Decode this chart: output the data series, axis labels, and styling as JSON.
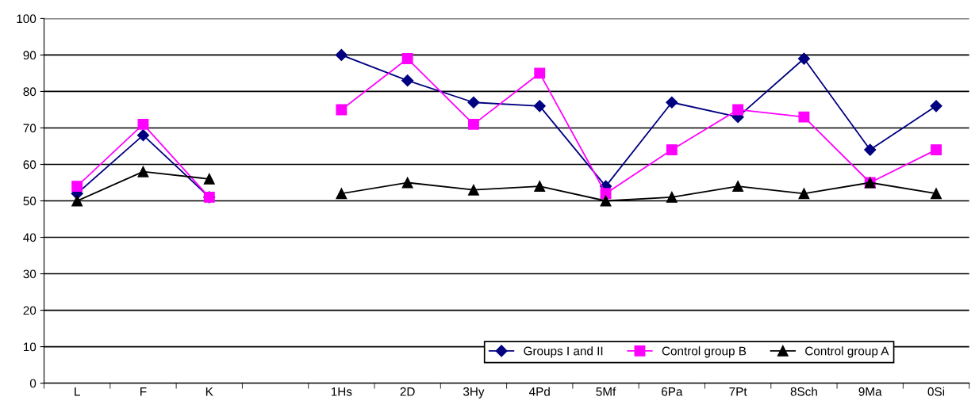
{
  "chart_data": {
    "type": "line",
    "categories": [
      "L",
      "F",
      "K",
      null,
      "1Hs",
      "2D",
      "3Hy",
      "4Pd",
      "5Mf",
      "6Pa",
      "7Pt",
      "8Sch",
      "9Ma",
      "0Si"
    ],
    "series": [
      {
        "name": "Groups I and II",
        "color": "#000080",
        "marker": "diamond",
        "values": [
          52,
          68,
          51,
          null,
          90,
          83,
          77,
          76,
          54,
          77,
          73,
          89,
          64,
          76
        ]
      },
      {
        "name": "Control group B",
        "color": "#ff00ff",
        "marker": "square",
        "values": [
          54,
          71,
          51,
          null,
          75,
          89,
          71,
          85,
          52,
          64,
          75,
          73,
          55,
          64
        ]
      },
      {
        "name": "Control group A",
        "color": "#000000",
        "marker": "triangle",
        "values": [
          50,
          58,
          56,
          null,
          52,
          55,
          53,
          54,
          50,
          51,
          54,
          52,
          55,
          52
        ]
      }
    ],
    "ylim": [
      0,
      100
    ],
    "yticks": [
      0,
      10,
      20,
      30,
      40,
      50,
      60,
      70,
      80,
      90,
      100
    ],
    "grid": "y",
    "legend": "bottom right",
    "line_style": "solid"
  }
}
